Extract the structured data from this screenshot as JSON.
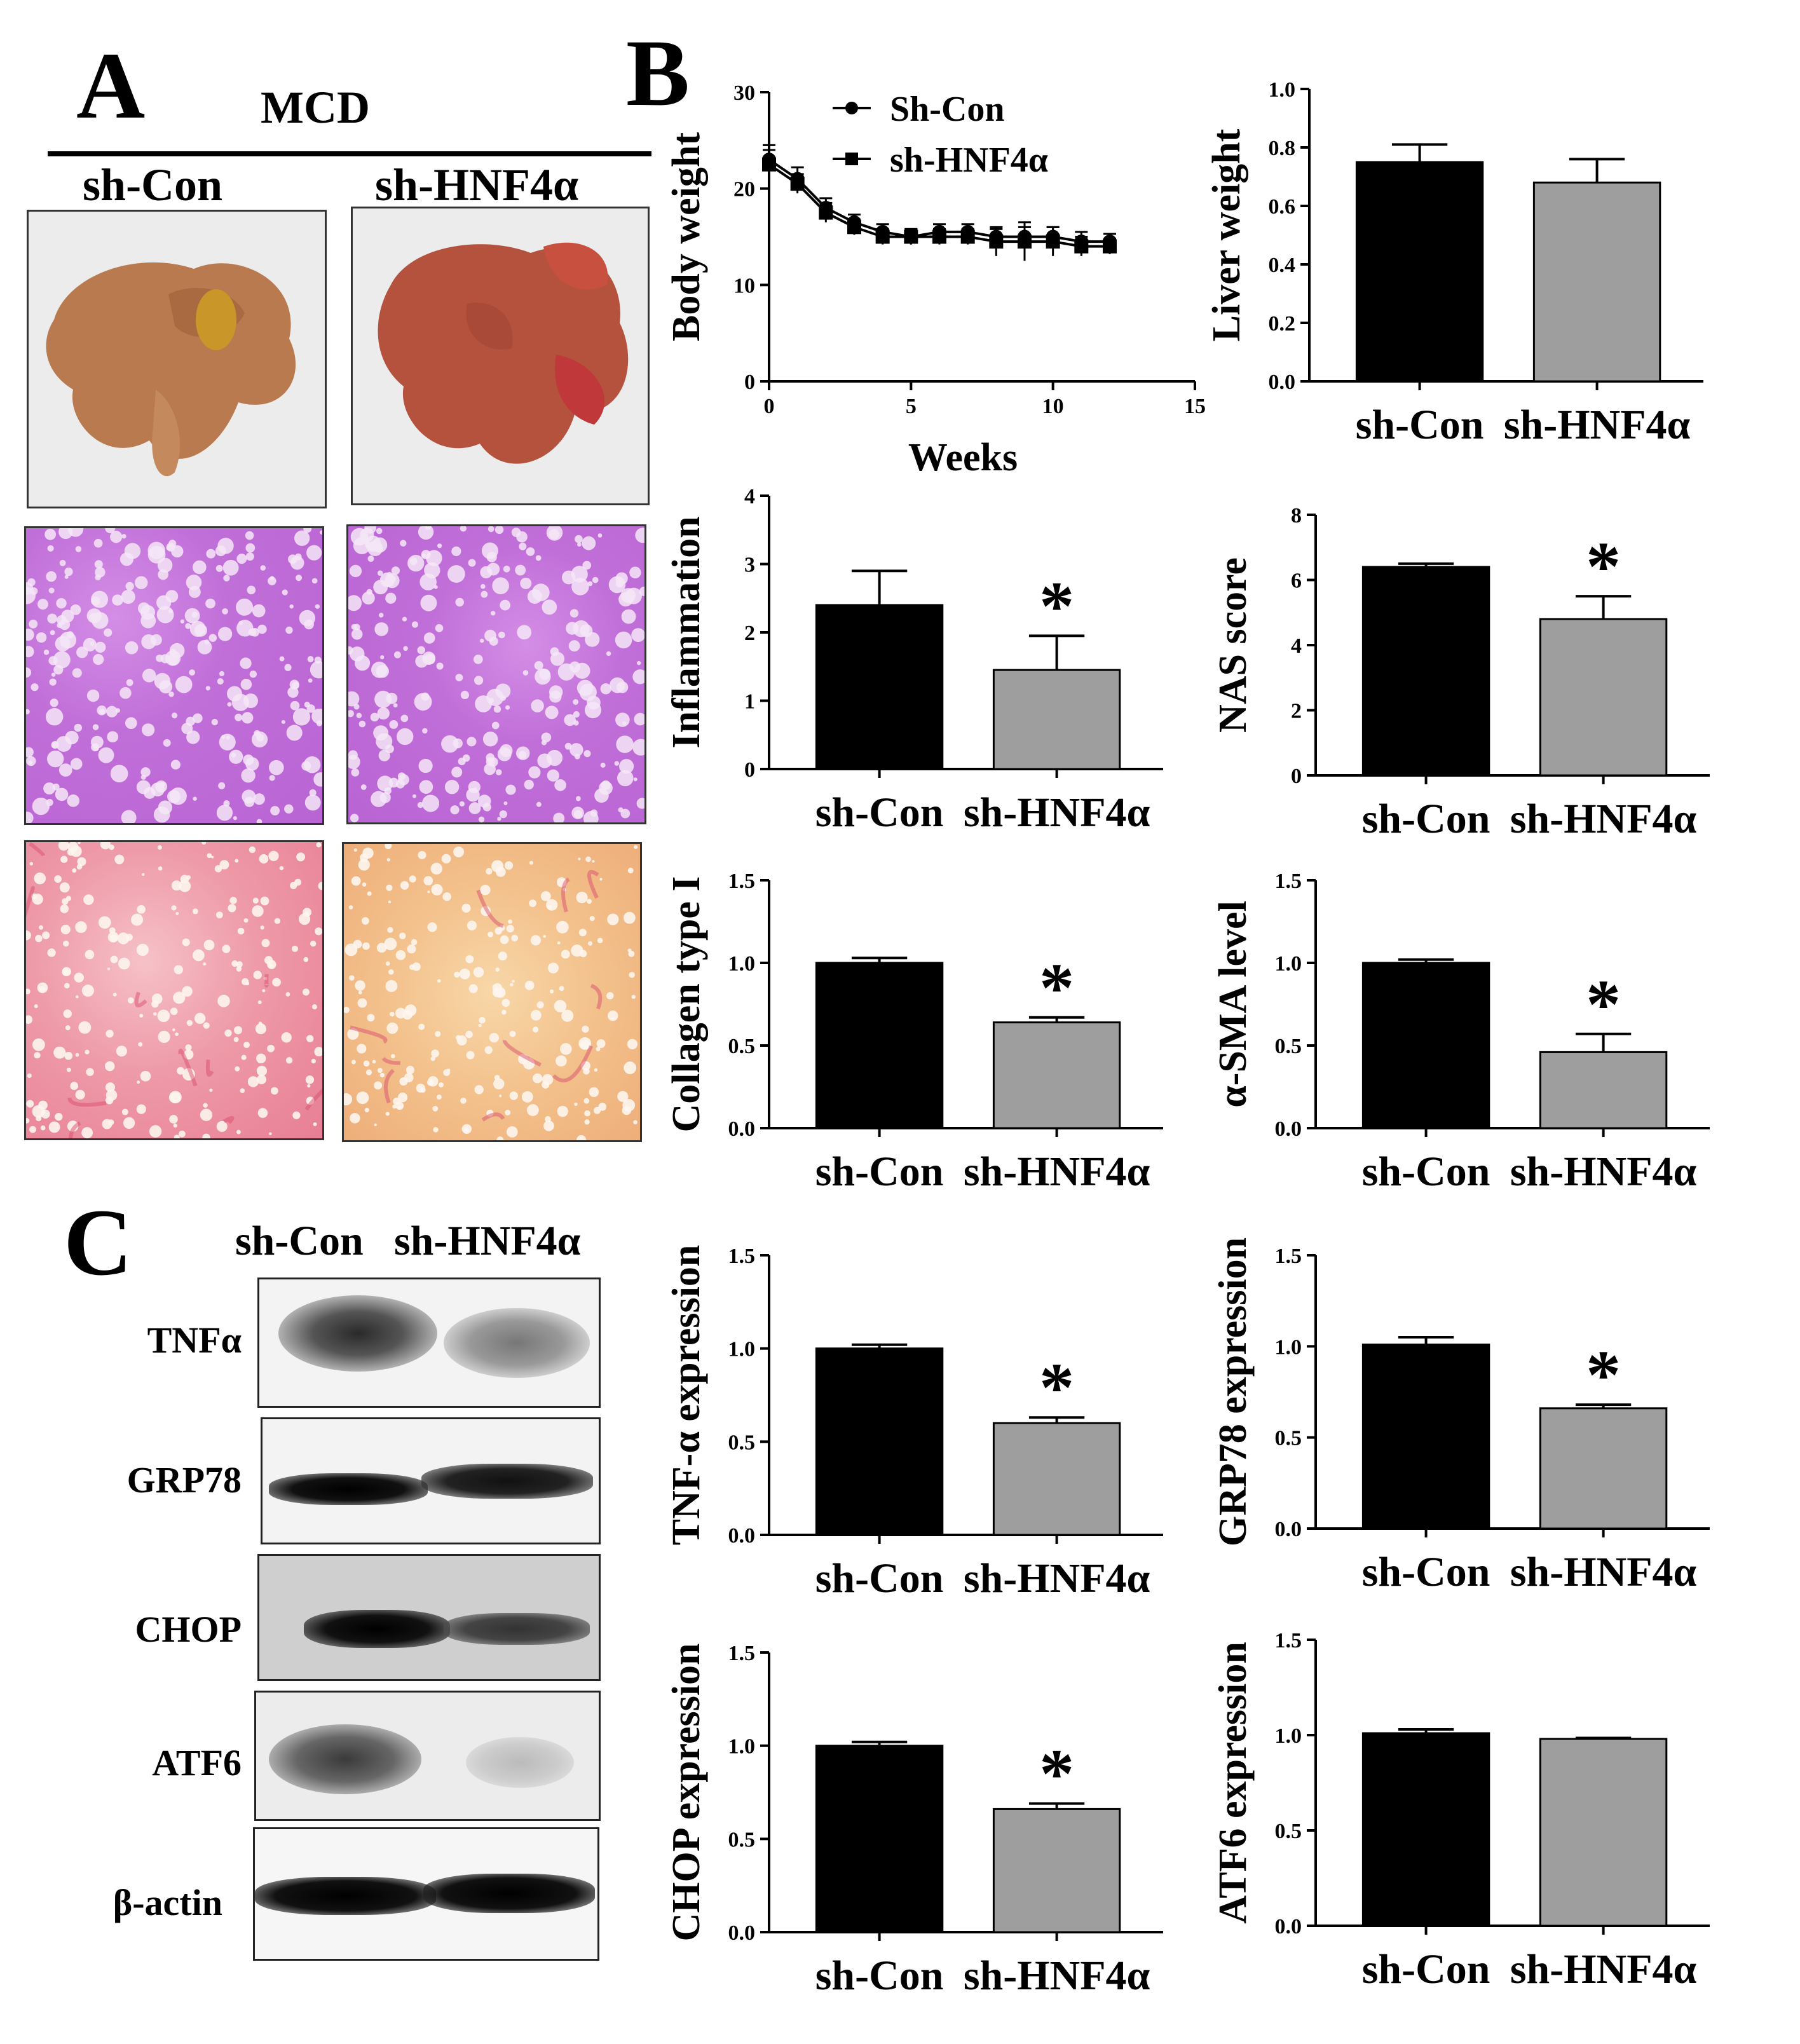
{
  "panel_a": {
    "letter": "A",
    "condition": "MCD",
    "groups": [
      "sh-Con",
      "sh-HNF4α"
    ]
  },
  "panel_b": {
    "letter": "B"
  },
  "panel_c": {
    "letter": "C",
    "groups": [
      "sh-Con",
      "sh-HNF4α"
    ],
    "proteins": [
      "TNFα",
      "GRP78",
      "CHOP",
      "ATF6",
      "β-actin"
    ]
  },
  "colors": {
    "sh_con": "#000000",
    "sh_hnf4a": "#9e9e9e"
  },
  "chart_data": [
    {
      "id": "body-weight",
      "type": "line",
      "xlabel": "Weeks",
      "ylabel": "Body weight",
      "xlim": [
        0,
        15
      ],
      "ylim": [
        0,
        30
      ],
      "xticks": [
        0,
        5,
        10,
        15
      ],
      "yticks": [
        0,
        10,
        20,
        30
      ],
      "legend_position": "top-left",
      "series": [
        {
          "name": "Sh-Con",
          "marker": "circle",
          "x": [
            0,
            1,
            2,
            3,
            4,
            5,
            6,
            7,
            8,
            9,
            10,
            11,
            12
          ],
          "y": [
            23,
            21,
            18,
            16.5,
            15.5,
            15,
            15.5,
            15.5,
            15,
            15,
            15,
            14.5,
            14.5
          ],
          "err": [
            1.5,
            1.2,
            1,
            0.8,
            0.8,
            0.8,
            0.8,
            0.8,
            0.8,
            1,
            1,
            1,
            0.8
          ]
        },
        {
          "name": "sh-HNF4α",
          "marker": "square",
          "x": [
            0,
            1,
            2,
            3,
            4,
            5,
            6,
            7,
            8,
            9,
            10,
            11,
            12
          ],
          "y": [
            22.5,
            20.5,
            17.5,
            16,
            15,
            15,
            15,
            15,
            14.5,
            14.5,
            14.5,
            14,
            14
          ],
          "err": [
            1.5,
            1,
            1,
            0.8,
            0.8,
            0.8,
            0.8,
            0.8,
            1.5,
            2,
            1.5,
            1,
            0.8
          ]
        }
      ]
    },
    {
      "id": "liver-weight",
      "type": "bar",
      "ylabel": "Liver weight",
      "categories": [
        "sh-Con",
        "sh-HNF4α"
      ],
      "values": [
        0.75,
        0.68
      ],
      "errors": [
        0.06,
        0.08
      ],
      "ylim": [
        0,
        1.0
      ],
      "yticks": [
        "0.0",
        "0.2",
        "0.4",
        "0.6",
        "0.8",
        "1.0"
      ],
      "significant": [
        false,
        false
      ]
    },
    {
      "id": "inflammation",
      "type": "bar",
      "ylabel": "Inflammation",
      "categories": [
        "sh-Con",
        "sh-HNF4α"
      ],
      "values": [
        2.4,
        1.45
      ],
      "errors": [
        0.5,
        0.5
      ],
      "ylim": [
        0,
        4
      ],
      "yticks": [
        "0",
        "1",
        "2",
        "3",
        "4"
      ],
      "significant": [
        false,
        true
      ]
    },
    {
      "id": "nas-score",
      "type": "bar",
      "ylabel": "NAS score",
      "categories": [
        "sh-Con",
        "sh-HNF4α"
      ],
      "values": [
        6.4,
        4.8
      ],
      "errors": [
        0.1,
        0.7
      ],
      "ylim": [
        0,
        8
      ],
      "yticks": [
        "0",
        "2",
        "4",
        "6",
        "8"
      ],
      "significant": [
        false,
        true
      ]
    },
    {
      "id": "collagen",
      "type": "bar",
      "ylabel": "Collagen type I",
      "categories": [
        "sh-Con",
        "sh-HNF4α"
      ],
      "values": [
        1.0,
        0.64
      ],
      "errors": [
        0.03,
        0.03
      ],
      "ylim": [
        0,
        1.5
      ],
      "yticks": [
        "0.0",
        "0.5",
        "1.0",
        "1.5"
      ],
      "significant": [
        false,
        true
      ]
    },
    {
      "id": "asma",
      "type": "bar",
      "ylabel": "α-SMA level",
      "categories": [
        "sh-Con",
        "sh-HNF4α"
      ],
      "values": [
        1.0,
        0.46
      ],
      "errors": [
        0.02,
        0.11
      ],
      "ylim": [
        0,
        1.5
      ],
      "yticks": [
        "0.0",
        "0.5",
        "1.0",
        "1.5"
      ],
      "significant": [
        false,
        true
      ]
    },
    {
      "id": "tnfa",
      "type": "bar",
      "ylabel": "TNF-α expression",
      "categories": [
        "sh-Con",
        "sh-HNF4α"
      ],
      "values": [
        1.0,
        0.6
      ],
      "errors": [
        0.02,
        0.03
      ],
      "ylim": [
        0,
        1.5
      ],
      "yticks": [
        "0.0",
        "0.5",
        "1.0",
        "1.5"
      ],
      "significant": [
        false,
        true
      ]
    },
    {
      "id": "grp78",
      "type": "bar",
      "ylabel": "GRP78  expression",
      "categories": [
        "sh-Con",
        "sh-HNF4α"
      ],
      "values": [
        1.01,
        0.66
      ],
      "errors": [
        0.04,
        0.02
      ],
      "ylim": [
        0,
        1.5
      ],
      "yticks": [
        "0.0",
        "0.5",
        "1.0",
        "1.5"
      ],
      "significant": [
        false,
        true
      ]
    },
    {
      "id": "chop",
      "type": "bar",
      "ylabel": "CHOP expression",
      "categories": [
        "sh-Con",
        "sh-HNF4α"
      ],
      "values": [
        1.0,
        0.66
      ],
      "errors": [
        0.02,
        0.03
      ],
      "ylim": [
        0,
        1.5
      ],
      "yticks": [
        "0.0",
        "0.5",
        "1.0",
        "1.5"
      ],
      "significant": [
        false,
        true
      ]
    },
    {
      "id": "atf6",
      "type": "bar",
      "ylabel": "ATF6 expression",
      "categories": [
        "sh-Con",
        "sh-HNF4α"
      ],
      "values": [
        1.01,
        0.98
      ],
      "errors": [
        0.02,
        0.005
      ],
      "ylim": [
        0,
        1.5
      ],
      "yticks": [
        "0.0",
        "0.5",
        "1.0",
        "1.5"
      ],
      "significant": [
        false,
        false
      ]
    }
  ]
}
